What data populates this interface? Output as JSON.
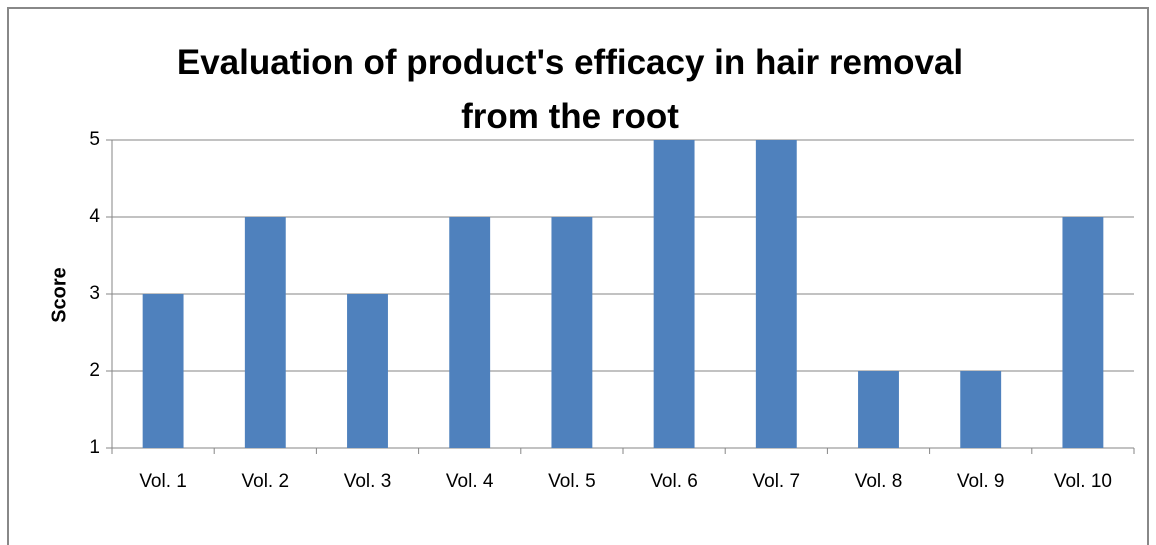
{
  "chart_data": {
    "type": "bar",
    "title": "Evaluation of product's efficacy in hair removal from the root",
    "y_label": "Score",
    "categories": [
      "Vol. 1",
      "Vol. 2",
      "Vol. 3",
      "Vol. 4",
      "Vol. 5",
      "Vol. 6",
      "Vol. 7",
      "Vol. 8",
      "Vol. 9",
      "Vol. 10"
    ],
    "values": [
      3,
      4,
      3,
      4,
      4,
      5,
      5,
      2,
      2,
      4
    ],
    "color": "#4f81bd",
    "ylim": [
      1,
      5
    ],
    "yticks": [
      1,
      2,
      3,
      4,
      5
    ],
    "grid": true
  }
}
